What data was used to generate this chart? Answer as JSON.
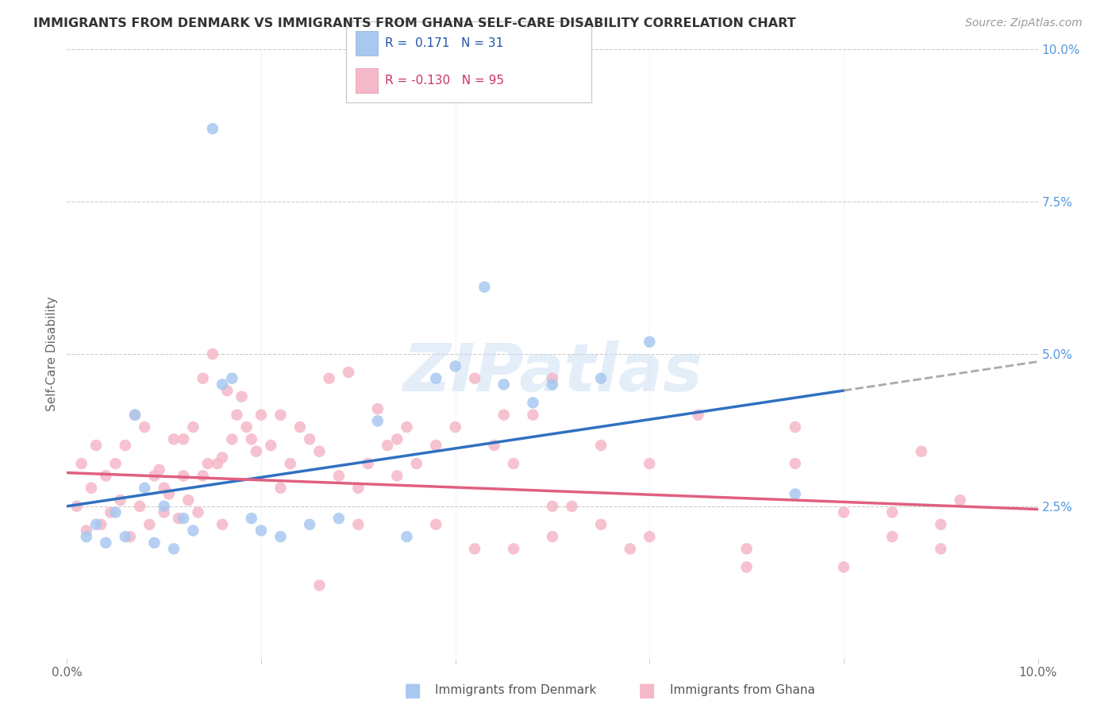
{
  "title": "IMMIGRANTS FROM DENMARK VS IMMIGRANTS FROM GHANA SELF-CARE DISABILITY CORRELATION CHART",
  "source": "Source: ZipAtlas.com",
  "ylabel_left": "Self-Care Disability",
  "x_min": 0.0,
  "x_max": 10.0,
  "y_min": 0.0,
  "y_max": 10.0,
  "denmark_R": 0.171,
  "denmark_N": 31,
  "ghana_R": -0.13,
  "ghana_N": 95,
  "denmark_color": "#a8c8f0",
  "ghana_color": "#f5b8c8",
  "denmark_line_color": "#3070c0",
  "ghana_line_color": "#e06080",
  "denmark_x": [
    1.5,
    0.3,
    0.5,
    0.8,
    1.0,
    1.2,
    1.6,
    1.7,
    2.0,
    2.2,
    2.5,
    0.6,
    0.9,
    1.1,
    1.3,
    0.4,
    0.7,
    3.2,
    4.0,
    4.8,
    5.5,
    6.0,
    7.5,
    4.5,
    3.8,
    0.2,
    1.9,
    2.8,
    5.0,
    3.5,
    4.3
  ],
  "denmark_y": [
    8.7,
    2.2,
    2.4,
    2.8,
    2.5,
    2.3,
    4.5,
    4.6,
    2.1,
    2.0,
    2.2,
    2.0,
    1.9,
    1.8,
    2.1,
    1.9,
    4.0,
    3.9,
    4.8,
    4.2,
    4.6,
    5.2,
    2.7,
    4.5,
    4.6,
    2.0,
    2.3,
    2.3,
    4.5,
    2.0,
    6.1
  ],
  "ghana_x": [
    0.1,
    0.15,
    0.2,
    0.25,
    0.3,
    0.35,
    0.4,
    0.45,
    0.5,
    0.55,
    0.6,
    0.65,
    0.7,
    0.75,
    0.8,
    0.85,
    0.9,
    0.95,
    1.0,
    1.05,
    1.1,
    1.15,
    1.2,
    1.25,
    1.3,
    1.35,
    1.4,
    1.45,
    1.5,
    1.55,
    1.6,
    1.65,
    1.7,
    1.75,
    1.8,
    1.85,
    1.9,
    1.95,
    2.0,
    2.1,
    2.2,
    2.3,
    2.4,
    2.5,
    2.6,
    2.7,
    2.8,
    2.9,
    3.0,
    3.1,
    3.2,
    3.3,
    3.4,
    3.5,
    3.6,
    3.8,
    4.0,
    4.2,
    4.4,
    4.5,
    4.6,
    4.8,
    5.0,
    5.0,
    5.2,
    5.5,
    5.8,
    6.0,
    6.5,
    7.0,
    7.5,
    7.5,
    8.0,
    8.5,
    8.8,
    9.0,
    9.2,
    1.0,
    1.2,
    1.4,
    1.6,
    2.2,
    2.6,
    3.0,
    3.4,
    3.8,
    4.2,
    4.6,
    5.0,
    5.5,
    6.0,
    7.0,
    8.0,
    8.5,
    9.0
  ],
  "ghana_y": [
    2.5,
    3.2,
    2.1,
    2.8,
    3.5,
    2.2,
    3.0,
    2.4,
    3.2,
    2.6,
    3.5,
    2.0,
    4.0,
    2.5,
    3.8,
    2.2,
    3.0,
    3.1,
    2.4,
    2.7,
    3.6,
    2.3,
    3.0,
    2.6,
    3.8,
    2.4,
    4.6,
    3.2,
    5.0,
    3.2,
    3.3,
    4.4,
    3.6,
    4.0,
    4.3,
    3.8,
    3.6,
    3.4,
    4.0,
    3.5,
    4.0,
    3.2,
    3.8,
    3.6,
    3.4,
    4.6,
    3.0,
    4.7,
    2.8,
    3.2,
    4.1,
    3.5,
    3.0,
    3.8,
    3.2,
    3.5,
    3.8,
    4.6,
    3.5,
    4.0,
    1.8,
    4.0,
    2.5,
    4.6,
    2.5,
    3.5,
    1.8,
    3.2,
    4.0,
    1.5,
    3.2,
    3.8,
    2.4,
    2.0,
    3.4,
    1.8,
    2.6,
    2.8,
    3.6,
    3.0,
    2.2,
    2.8,
    1.2,
    2.2,
    3.6,
    2.2,
    1.8,
    3.2,
    2.0,
    2.2,
    2.0,
    1.8,
    1.5,
    2.4,
    2.2
  ]
}
